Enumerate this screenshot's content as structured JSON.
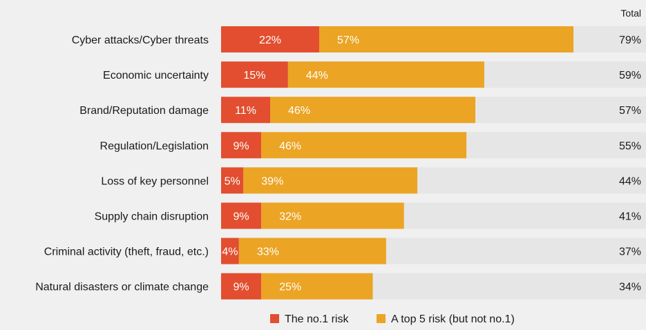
{
  "chart_data": {
    "type": "bar",
    "orientation": "horizontal",
    "stacked": true,
    "total_header": "Total",
    "categories": [
      "Cyber attacks/Cyber threats",
      "Economic uncertainty",
      "Brand/Reputation damage",
      "Regulation/Legislation",
      "Loss of key personnel",
      "Supply chain disruption",
      "Criminal activity (theft, fraud, etc.)",
      "Natural disasters or climate change"
    ],
    "series": [
      {
        "name": "The no.1 risk",
        "color": "#e24e2f",
        "values": [
          22,
          15,
          11,
          9,
          5,
          9,
          4,
          9
        ],
        "labels": [
          "22%",
          "15%",
          "11%",
          "9%",
          "5%",
          "9%",
          "4%",
          "9%"
        ]
      },
      {
        "name": "A top 5 risk (but not no.1)",
        "color": "#eba424",
        "values": [
          57,
          44,
          46,
          46,
          39,
          32,
          33,
          25
        ],
        "labels": [
          "57%",
          "44%",
          "46%",
          "46%",
          "39%",
          "32%",
          "33%",
          "25%"
        ]
      }
    ],
    "totals": [
      "79%",
      "59%",
      "57%",
      "55%",
      "44%",
      "41%",
      "37%",
      "34%"
    ],
    "xlim": [
      0,
      100
    ],
    "track_color": "#e6e6e6",
    "legend_position": "bottom-center",
    "grid": false
  }
}
